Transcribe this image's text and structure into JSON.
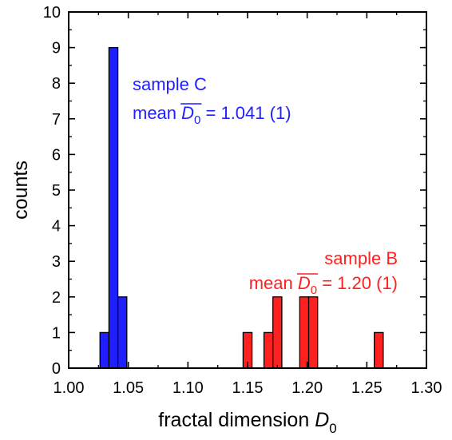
{
  "chart_data": {
    "type": "bar",
    "subtype": "histogram",
    "xlabel": {
      "text": "fractal dimension ",
      "symbol": "D",
      "subscript": "0"
    },
    "ylabel": "counts",
    "xlim": [
      1.0,
      1.3
    ],
    "ylim": [
      0,
      10
    ],
    "x_ticks": [
      "1.00",
      "1.05",
      "1.10",
      "1.15",
      "1.20",
      "1.25",
      "1.30"
    ],
    "y_ticks": [
      "0",
      "1",
      "2",
      "3",
      "4",
      "5",
      "6",
      "7",
      "8",
      "9",
      "10"
    ],
    "bin_width": 0.0075,
    "grid": false,
    "series": [
      {
        "color": "#1f1fff",
        "bins": [
          {
            "x": 1.03,
            "count": 1
          },
          {
            "x": 1.0375,
            "count": 9
          },
          {
            "x": 1.045,
            "count": 2
          }
        ],
        "annotation": {
          "line1": "sample C",
          "mean_prefix": "mean ",
          "symbol": "D",
          "subscript": "0",
          "value": " = 1.041 (1)"
        }
      },
      {
        "color": "#ff2020",
        "bins": [
          {
            "x": 1.15,
            "count": 1
          },
          {
            "x": 1.1675,
            "count": 1
          },
          {
            "x": 1.175,
            "count": 2
          },
          {
            "x": 1.1975,
            "count": 2
          },
          {
            "x": 1.205,
            "count": 2
          },
          {
            "x": 1.26,
            "count": 1
          }
        ],
        "annotation": {
          "line1": "sample B",
          "mean_prefix": "mean ",
          "symbol": "D",
          "subscript": "0",
          "value": " = 1.20 (1)"
        }
      }
    ]
  }
}
